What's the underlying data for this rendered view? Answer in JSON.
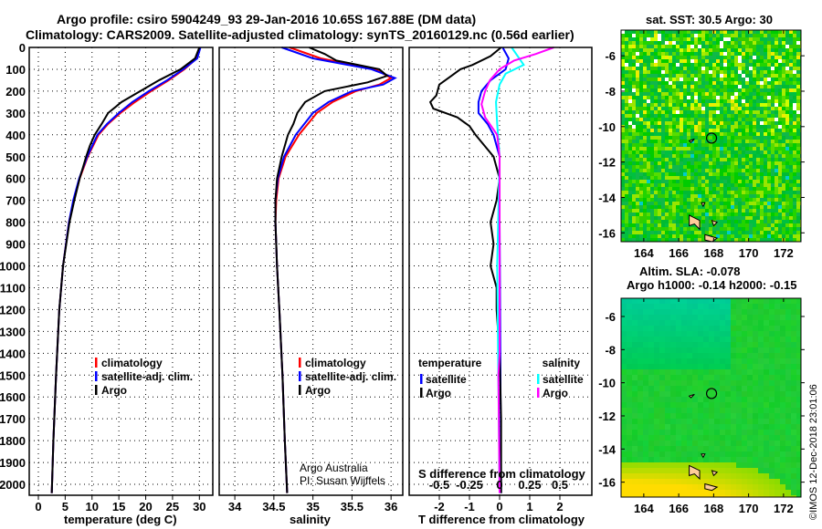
{
  "title_line1": "Argo profile: csiro 5904249_93 29-Jan-2016 10.65S 167.88E (DM data)",
  "title_line2": "Climatology: CARS2009. Satellite-adjusted climatology: synTS_20160129.nc (0.56d earlier)",
  "footer_credit": "©IMOS 12-Dec-2018 23:01:06",
  "annotation_line1": "Argo Australia",
  "annotation_line2": "PI: Susan Wijffels",
  "colors": {
    "climatology": "#ff0000",
    "satellite": "#0000ff",
    "argo": "#000000",
    "sal_satellite": "#00ffff",
    "sal_argo": "#ff00ff"
  },
  "chart_data": [
    {
      "type": "line",
      "id": "temperature",
      "xlabel": "temperature (deg C)",
      "ylabel": "depth",
      "xlim": [
        -1.7,
        32.5
      ],
      "ylim": [
        0,
        2050
      ],
      "xticks": [
        "0",
        "5",
        "10",
        "15",
        "20",
        "25",
        "30"
      ],
      "yticks": [
        "0",
        "100",
        "200",
        "300",
        "400",
        "500",
        "600",
        "700",
        "800",
        "900",
        "1000",
        "1100",
        "1200",
        "1300",
        "1400",
        "1500",
        "1600",
        "1700",
        "1800",
        "1900",
        "2000"
      ],
      "legend": [
        "climatology",
        "satellite-adj. clim.",
        "Argo"
      ],
      "series": [
        {
          "name": "climatology",
          "color": "#ff0000",
          "points": [
            [
              0,
              30
            ],
            [
              50,
              29.5
            ],
            [
              100,
              27.2
            ],
            [
              150,
              24.3
            ],
            [
              200,
              21
            ],
            [
              250,
              18
            ],
            [
              300,
              15.3
            ],
            [
              350,
              13
            ],
            [
              400,
              11.2
            ],
            [
              500,
              9.2
            ],
            [
              600,
              7.7
            ],
            [
              700,
              6.6
            ],
            [
              800,
              5.7
            ],
            [
              1000,
              4.6
            ],
            [
              1200,
              3.9
            ],
            [
              1500,
              3.3
            ],
            [
              1800,
              2.8
            ],
            [
              2040,
              2.5
            ]
          ]
        },
        {
          "name": "satellite-adj. clim.",
          "color": "#0000ff",
          "points": [
            [
              0,
              30.2
            ],
            [
              50,
              29.6
            ],
            [
              100,
              27
            ],
            [
              150,
              24
            ],
            [
              200,
              20.6
            ],
            [
              250,
              17.5
            ],
            [
              300,
              15
            ],
            [
              350,
              12.8
            ],
            [
              400,
              11
            ],
            [
              500,
              9.1
            ],
            [
              600,
              7.6
            ],
            [
              700,
              6.5
            ],
            [
              800,
              5.7
            ],
            [
              1000,
              4.6
            ],
            [
              1200,
              3.9
            ],
            [
              1500,
              3.3
            ],
            [
              1800,
              2.8
            ],
            [
              2040,
              2.5
            ]
          ]
        },
        {
          "name": "Argo",
          "color": "#000000",
          "points": [
            [
              0,
              30
            ],
            [
              50,
              29.2
            ],
            [
              100,
              26.5
            ],
            [
              150,
              22.5
            ],
            [
              200,
              19
            ],
            [
              250,
              15.5
            ],
            [
              300,
              13
            ],
            [
              350,
              11.8
            ],
            [
              400,
              10.5
            ],
            [
              450,
              9.6
            ],
            [
              500,
              8.9
            ],
            [
              600,
              7.7
            ],
            [
              700,
              6.7
            ],
            [
              800,
              5.8
            ],
            [
              1000,
              4.6
            ],
            [
              1200,
              3.9
            ],
            [
              1500,
              3.3
            ],
            [
              1800,
              2.8
            ],
            [
              2040,
              2.5
            ]
          ]
        }
      ]
    },
    {
      "type": "line",
      "id": "salinity",
      "xlabel": "salinity",
      "xlim": [
        33.8,
        36.15
      ],
      "ylim": [
        0,
        2050
      ],
      "xticks": [
        "34",
        "34.5",
        "35",
        "35.5",
        "36"
      ],
      "legend": [
        "climatology",
        "satellite-adj. clim.",
        "Argo"
      ],
      "series": [
        {
          "name": "climatology",
          "color": "#ff0000",
          "points": [
            [
              0,
              34.7
            ],
            [
              50,
              35.1
            ],
            [
              100,
              35.8
            ],
            [
              140,
              36.0
            ],
            [
              170,
              35.85
            ],
            [
              200,
              35.55
            ],
            [
              250,
              35.25
            ],
            [
              300,
              35.05
            ],
            [
              400,
              34.82
            ],
            [
              500,
              34.65
            ],
            [
              600,
              34.56
            ],
            [
              700,
              34.53
            ],
            [
              800,
              34.52
            ],
            [
              1000,
              34.54
            ],
            [
              1200,
              34.57
            ],
            [
              1500,
              34.61
            ],
            [
              1800,
              34.64
            ],
            [
              2040,
              34.67
            ]
          ]
        },
        {
          "name": "satellite-adj. clim.",
          "color": "#0000ff",
          "points": [
            [
              0,
              34.6
            ],
            [
              50,
              35.0
            ],
            [
              100,
              35.75
            ],
            [
              140,
              36.05
            ],
            [
              170,
              35.9
            ],
            [
              200,
              35.5
            ],
            [
              250,
              35.2
            ],
            [
              300,
              35.0
            ],
            [
              400,
              34.78
            ],
            [
              500,
              34.63
            ],
            [
              600,
              34.55
            ],
            [
              700,
              34.52
            ],
            [
              800,
              34.52
            ],
            [
              1000,
              34.54
            ],
            [
              1200,
              34.57
            ],
            [
              1500,
              34.61
            ],
            [
              1800,
              34.64
            ],
            [
              2040,
              34.67
            ]
          ]
        },
        {
          "name": "Argo",
          "color": "#000000",
          "points": [
            [
              0,
              34.95
            ],
            [
              30,
              35.15
            ],
            [
              60,
              35.3
            ],
            [
              100,
              35.85
            ],
            [
              130,
              35.95
            ],
            [
              160,
              35.7
            ],
            [
              200,
              35.15
            ],
            [
              250,
              34.9
            ],
            [
              300,
              34.8
            ],
            [
              350,
              34.75
            ],
            [
              400,
              34.68
            ],
            [
              500,
              34.6
            ],
            [
              600,
              34.54
            ],
            [
              700,
              34.52
            ],
            [
              800,
              34.52
            ],
            [
              1000,
              34.54
            ],
            [
              1200,
              34.57
            ],
            [
              1500,
              34.61
            ],
            [
              1800,
              34.64
            ],
            [
              2040,
              34.67
            ]
          ]
        }
      ]
    },
    {
      "type": "line",
      "id": "difference",
      "xlabel": "T difference from climatology",
      "x2label": "S difference from climatology",
      "xlim": [
        -3,
        3.06
      ],
      "ylim": [
        0,
        2050
      ],
      "xticks": [
        "-2",
        "-1",
        "0",
        "1",
        "2"
      ],
      "x2ticks": [
        "-0.5",
        "-0.25",
        "0",
        "0.25",
        "0.5"
      ],
      "legend_temperature": {
        "title": "temperature",
        "items": [
          "satellite",
          "Argo"
        ]
      },
      "legend_salinity": {
        "title": "salinity",
        "items": [
          "satellite",
          "Argo"
        ]
      },
      "series": [
        {
          "name": "temperature satellite",
          "color": "#0000ff",
          "points": [
            [
              0,
              0.1
            ],
            [
              50,
              0.3
            ],
            [
              100,
              0.2
            ],
            [
              150,
              -0.3
            ],
            [
              200,
              -0.6
            ],
            [
              250,
              -0.7
            ],
            [
              300,
              -0.7
            ],
            [
              350,
              -0.4
            ],
            [
              400,
              -0.2
            ],
            [
              500,
              0
            ],
            [
              800,
              0
            ],
            [
              2040,
              0.05
            ]
          ]
        },
        {
          "name": "temperature Argo",
          "color": "#000000",
          "points": [
            [
              0,
              0.05
            ],
            [
              40,
              -0.3
            ],
            [
              80,
              -0.9
            ],
            [
              100,
              -1.3
            ],
            [
              130,
              -1.6
            ],
            [
              170,
              -2.0
            ],
            [
              220,
              -2.1
            ],
            [
              250,
              -2.3
            ],
            [
              280,
              -2.2
            ],
            [
              320,
              -1.4
            ],
            [
              360,
              -1.0
            ],
            [
              400,
              -0.8
            ],
            [
              450,
              -0.5
            ],
            [
              500,
              -0.2
            ],
            [
              600,
              0
            ],
            [
              700,
              -0.1
            ],
            [
              800,
              -0.3
            ],
            [
              900,
              -0.2
            ],
            [
              1000,
              -0.3
            ],
            [
              1100,
              -0.1
            ],
            [
              1200,
              -0.1
            ],
            [
              1400,
              0
            ],
            [
              1700,
              0.05
            ],
            [
              2040,
              0.05
            ]
          ]
        },
        {
          "name": "salinity satellite",
          "color": "#00ffff",
          "scale": "S",
          "points": [
            [
              0,
              0.1
            ],
            [
              40,
              0.15
            ],
            [
              80,
              0.2
            ],
            [
              120,
              0.05
            ],
            [
              170,
              0.0
            ],
            [
              250,
              -0.03
            ],
            [
              350,
              -0.02
            ],
            [
              500,
              0
            ],
            [
              1000,
              -0.02
            ],
            [
              2040,
              0
            ]
          ]
        },
        {
          "name": "salinity Argo",
          "color": "#ff00ff",
          "scale": "S",
          "points": [
            [
              0,
              0.45
            ],
            [
              30,
              0.3
            ],
            [
              60,
              0.12
            ],
            [
              100,
              0.0
            ],
            [
              150,
              -0.08
            ],
            [
              200,
              -0.12
            ],
            [
              260,
              -0.15
            ],
            [
              320,
              -0.12
            ],
            [
              400,
              -0.02
            ],
            [
              500,
              0
            ],
            [
              1400,
              0
            ],
            [
              1500,
              -0.01
            ],
            [
              2040,
              0
            ]
          ]
        }
      ]
    },
    {
      "type": "heatmap",
      "id": "sst-map",
      "title": "sat. SST: 30.5 Argo: 30",
      "xlim": [
        162.7,
        173
      ],
      "ylim": [
        -16.5,
        -4.55
      ],
      "xticks": [
        "164",
        "166",
        "168",
        "170",
        "172"
      ],
      "yticks": [
        "-6",
        "-8",
        "-10",
        "-12",
        "-14",
        "-16"
      ],
      "argo_position": [
        167.88,
        -10.65
      ]
    },
    {
      "type": "heatmap",
      "id": "sla-map",
      "title_line1": "Altim. SLA: -0.078",
      "title_line2": "Argo h1000: -0.14 h2000: -0.15",
      "xlim": [
        162.7,
        173
      ],
      "ylim": [
        -16.9,
        -4.9
      ],
      "xticks": [
        "164",
        "166",
        "168",
        "170",
        "172"
      ],
      "yticks": [
        "-6",
        "-8",
        "-10",
        "-12",
        "-14",
        "-16"
      ],
      "argo_position": [
        167.88,
        -10.65
      ]
    }
  ]
}
